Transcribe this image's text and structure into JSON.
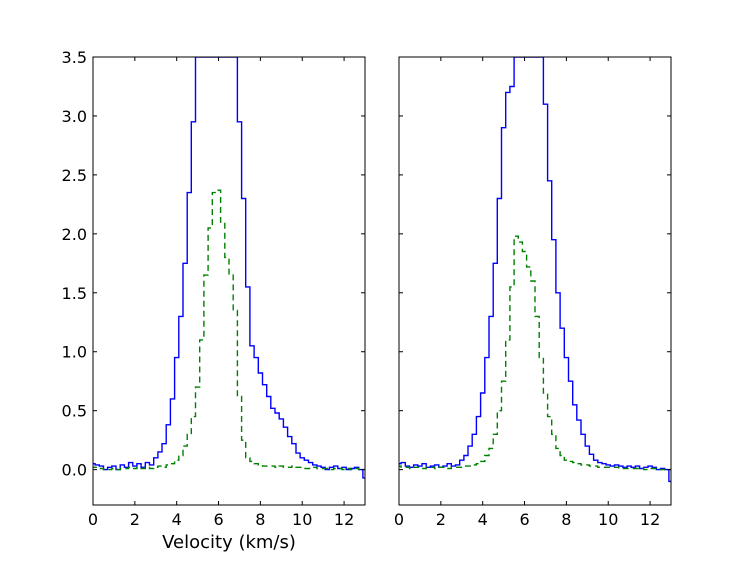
{
  "chart_data": [
    {
      "type": "line",
      "panel": "left",
      "xlabel": "Velocity (km/s)",
      "ylabel": "",
      "xlim": [
        0,
        13
      ],
      "ylim": [
        -0.3,
        3.5
      ],
      "xticks": [
        "0",
        "2",
        "4",
        "6",
        "8",
        "10",
        "12"
      ],
      "yticks": [
        "0.0",
        "0.5",
        "1.0",
        "1.5",
        "2.0",
        "2.5",
        "3.0",
        "3.5"
      ],
      "grid": false,
      "step": true,
      "series": [
        {
          "style": "solid",
          "color": "#0000ff",
          "x": [
            0.0,
            0.2,
            0.4,
            0.6,
            0.8,
            1.0,
            1.2,
            1.4,
            1.6,
            1.8,
            2.0,
            2.2,
            2.4,
            2.6,
            2.8,
            3.0,
            3.2,
            3.4,
            3.6,
            3.8,
            4.0,
            4.2,
            4.4,
            4.6,
            4.8,
            5.0,
            5.2,
            5.4,
            5.6,
            5.8,
            6.0,
            6.2,
            6.4,
            6.6,
            6.8,
            7.0,
            7.2,
            7.4,
            7.6,
            7.8,
            8.0,
            8.2,
            8.4,
            8.6,
            8.8,
            9.0,
            9.2,
            9.4,
            9.6,
            9.8,
            10.0,
            10.2,
            10.4,
            10.6,
            10.8,
            11.0,
            11.2,
            11.4,
            11.6,
            11.8,
            12.0,
            12.2,
            12.4,
            12.6,
            12.8,
            13.0
          ],
          "values": [
            0.05,
            0.04,
            0.03,
            0.0,
            0.02,
            0.03,
            0.0,
            0.04,
            0.02,
            0.06,
            0.03,
            0.05,
            0.02,
            0.06,
            0.04,
            0.1,
            0.15,
            0.22,
            0.38,
            0.6,
            0.95,
            1.3,
            1.75,
            2.35,
            2.95,
            3.5,
            3.5,
            3.5,
            3.5,
            3.5,
            3.5,
            3.5,
            3.5,
            3.5,
            3.5,
            2.95,
            2.3,
            1.55,
            1.05,
            0.95,
            0.82,
            0.72,
            0.62,
            0.52,
            0.48,
            0.43,
            0.36,
            0.28,
            0.22,
            0.14,
            0.1,
            0.08,
            0.06,
            0.04,
            0.03,
            0.02,
            0.0,
            0.02,
            0.03,
            0.01,
            0.02,
            0.0,
            0.01,
            0.02,
            0.0,
            -0.07
          ]
        },
        {
          "style": "dashed",
          "color": "#008000",
          "x": [
            0.0,
            0.2,
            0.4,
            0.6,
            0.8,
            1.0,
            1.2,
            1.4,
            1.6,
            1.8,
            2.0,
            2.2,
            2.4,
            2.6,
            2.8,
            3.0,
            3.2,
            3.4,
            3.6,
            3.8,
            4.0,
            4.2,
            4.4,
            4.6,
            4.8,
            5.0,
            5.2,
            5.4,
            5.6,
            5.8,
            6.0,
            6.2,
            6.4,
            6.6,
            6.8,
            7.0,
            7.2,
            7.4,
            7.6,
            7.8,
            8.0,
            8.2,
            8.4,
            8.6,
            8.8,
            9.0,
            9.2,
            9.4,
            9.6,
            9.8,
            10.0,
            10.2,
            10.4,
            10.6,
            10.8,
            11.0,
            11.2,
            11.4,
            11.6,
            11.8,
            12.0,
            12.2,
            12.4,
            12.6,
            12.8,
            13.0
          ],
          "values": [
            0.02,
            0.02,
            0.01,
            0.0,
            0.0,
            0.01,
            0.0,
            0.01,
            0.01,
            0.02,
            0.01,
            0.02,
            0.01,
            0.02,
            0.01,
            0.02,
            0.03,
            0.02,
            0.04,
            0.05,
            0.08,
            0.12,
            0.2,
            0.3,
            0.45,
            0.7,
            1.1,
            1.65,
            2.05,
            2.35,
            2.37,
            2.1,
            1.8,
            1.65,
            1.35,
            0.62,
            0.25,
            0.1,
            0.07,
            0.05,
            0.04,
            0.03,
            0.03,
            0.03,
            0.02,
            0.03,
            0.02,
            0.02,
            0.03,
            0.02,
            0.02,
            0.01,
            0.01,
            0.02,
            0.01,
            0.01,
            0.01,
            0.0,
            0.01,
            0.01,
            0.0,
            0.01,
            0.0,
            0.01,
            0.0,
            0.0
          ]
        }
      ]
    },
    {
      "type": "line",
      "panel": "right",
      "xlabel": "",
      "ylabel": "",
      "xlim": [
        0,
        13
      ],
      "ylim": [
        -0.3,
        3.5
      ],
      "xticks": [
        "0",
        "2",
        "4",
        "6",
        "8",
        "10",
        "12"
      ],
      "yticks": [],
      "grid": false,
      "step": true,
      "series": [
        {
          "style": "solid",
          "color": "#0000ff",
          "x": [
            0.0,
            0.2,
            0.4,
            0.6,
            0.8,
            1.0,
            1.2,
            1.4,
            1.6,
            1.8,
            2.0,
            2.2,
            2.4,
            2.6,
            2.8,
            3.0,
            3.2,
            3.4,
            3.6,
            3.8,
            4.0,
            4.2,
            4.4,
            4.6,
            4.8,
            5.0,
            5.2,
            5.4,
            5.6,
            5.8,
            6.0,
            6.2,
            6.4,
            6.6,
            6.8,
            7.0,
            7.2,
            7.4,
            7.6,
            7.8,
            8.0,
            8.2,
            8.4,
            8.6,
            8.8,
            9.0,
            9.2,
            9.4,
            9.6,
            9.8,
            10.0,
            10.2,
            10.4,
            10.6,
            10.8,
            11.0,
            11.2,
            11.4,
            11.6,
            11.8,
            12.0,
            12.2,
            12.4,
            12.6,
            12.8,
            13.0
          ],
          "values": [
            0.05,
            0.06,
            0.03,
            0.02,
            0.04,
            0.03,
            0.05,
            0.02,
            0.03,
            0.04,
            0.02,
            0.03,
            0.05,
            0.03,
            0.04,
            0.08,
            0.12,
            0.2,
            0.3,
            0.45,
            0.65,
            0.95,
            1.3,
            1.75,
            2.3,
            2.9,
            3.2,
            3.25,
            3.5,
            3.5,
            3.5,
            3.5,
            3.5,
            3.5,
            3.5,
            3.1,
            2.45,
            1.95,
            1.5,
            1.2,
            0.95,
            0.75,
            0.55,
            0.42,
            0.3,
            0.2,
            0.13,
            0.08,
            0.06,
            0.05,
            0.04,
            0.03,
            0.04,
            0.03,
            0.02,
            0.03,
            0.02,
            0.03,
            0.01,
            0.02,
            0.03,
            0.02,
            0.0,
            0.01,
            0.0,
            -0.1
          ]
        },
        {
          "style": "dashed",
          "color": "#008000",
          "x": [
            0.0,
            0.2,
            0.4,
            0.6,
            0.8,
            1.0,
            1.2,
            1.4,
            1.6,
            1.8,
            2.0,
            2.2,
            2.4,
            2.6,
            2.8,
            3.0,
            3.2,
            3.4,
            3.6,
            3.8,
            4.0,
            4.2,
            4.4,
            4.6,
            4.8,
            5.0,
            5.2,
            5.4,
            5.6,
            5.8,
            6.0,
            6.2,
            6.4,
            6.6,
            6.8,
            7.0,
            7.2,
            7.4,
            7.6,
            7.8,
            8.0,
            8.2,
            8.4,
            8.6,
            8.8,
            9.0,
            9.2,
            9.4,
            9.6,
            9.8,
            10.0,
            10.2,
            10.4,
            10.6,
            10.8,
            11.0,
            11.2,
            11.4,
            11.6,
            11.8,
            12.0,
            12.2,
            12.4,
            12.6,
            12.8,
            13.0
          ],
          "values": [
            0.03,
            0.02,
            0.02,
            0.01,
            0.02,
            0.02,
            0.01,
            0.02,
            0.02,
            0.01,
            0.02,
            0.02,
            0.01,
            0.02,
            0.02,
            0.02,
            0.03,
            0.03,
            0.04,
            0.05,
            0.07,
            0.12,
            0.18,
            0.3,
            0.5,
            0.75,
            1.1,
            1.55,
            1.98,
            1.93,
            1.85,
            1.72,
            1.6,
            1.3,
            0.95,
            0.65,
            0.45,
            0.3,
            0.18,
            0.12,
            0.08,
            0.07,
            0.06,
            0.05,
            0.04,
            0.04,
            0.03,
            0.03,
            0.02,
            0.02,
            0.02,
            0.02,
            0.02,
            0.01,
            0.01,
            0.01,
            0.01,
            0.01,
            0.01,
            0.0,
            0.01,
            0.01,
            0.0,
            0.0,
            0.0,
            0.0
          ]
        }
      ]
    }
  ]
}
